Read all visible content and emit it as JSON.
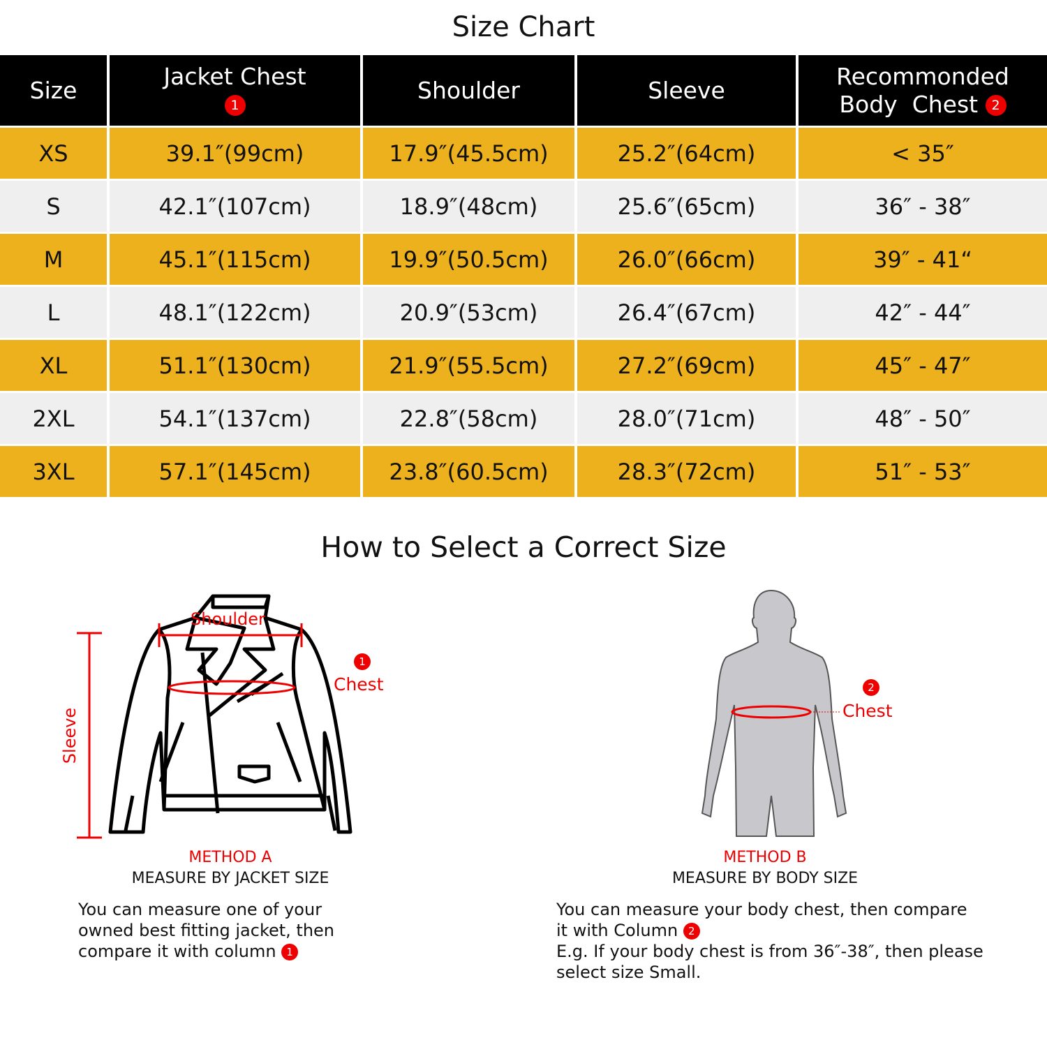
{
  "title": "Size Chart",
  "table": {
    "headers": [
      "Size",
      "Jacket Chest",
      "Shoulder",
      "Sleeve",
      "Recommonded",
      "Body  Chest"
    ],
    "header_badges": [
      "1",
      "2"
    ],
    "rows": [
      [
        "XS",
        "39.1″(99cm)",
        "17.9″(45.5cm)",
        "25.2″(64cm)",
        "< 35″"
      ],
      [
        "S",
        "42.1″(107cm)",
        "18.9″(48cm)",
        "25.6″(65cm)",
        "36″ - 38″"
      ],
      [
        "M",
        "45.1″(115cm)",
        "19.9″(50.5cm)",
        "26.0″(66cm)",
        "39″ - 41“"
      ],
      [
        "L",
        "48.1″(122cm)",
        "20.9″(53cm)",
        "26.4″(67cm)",
        "42″ - 44″"
      ],
      [
        "XL",
        "51.1″(130cm)",
        "21.9″(55.5cm)",
        "27.2″(69cm)",
        "45″ - 47″"
      ],
      [
        "2XL",
        "54.1″(137cm)",
        "22.8″(58cm)",
        "28.0″(71cm)",
        "48″ - 50″"
      ],
      [
        "3XL",
        "57.1″(145cm)",
        "23.8″(60.5cm)",
        "28.3″(72cm)",
        "51″ - 53″"
      ]
    ],
    "colors": {
      "header": "#000000",
      "gold_row": "#ECB11C",
      "gray_row": "#EFEFEF",
      "badge": "#EE0000"
    }
  },
  "guide": {
    "title": "How to Select a Correct Size",
    "method_a": {
      "labels": {
        "shoulder": "Shoulder",
        "sleeve": "Sleeve",
        "chest": "Chest",
        "badge": "1"
      },
      "method": "METHOD A",
      "subtitle": "MEASURE BY JACKET SIZE",
      "desc_lines": [
        "You can measure one of your",
        "owned best fitting jacket, then",
        "compare it with column"
      ],
      "badge": "1"
    },
    "method_b": {
      "labels": {
        "chest": "Chest",
        "badge": "2"
      },
      "method": "METHOD B",
      "subtitle": "MEASURE BY BODY SIZE",
      "desc_lines": [
        "You can measure your body chest, then compare",
        "it with Column",
        "E.g. If your body chest is from 36″-38″, then please",
        "select size Small."
      ],
      "badge": "2"
    }
  }
}
